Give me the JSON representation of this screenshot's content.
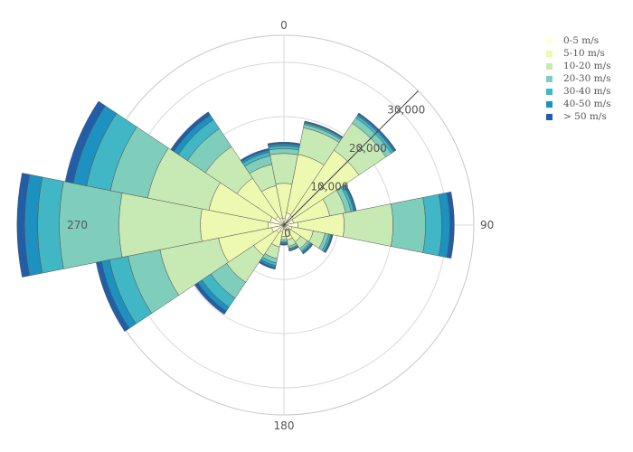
{
  "chart_data": {
    "type": "barpolar",
    "angular_axis": {
      "direction": "clockwise",
      "rotation_deg": 90,
      "tick_labels": [
        "0",
        "90",
        "180",
        "270"
      ]
    },
    "radial_axis": {
      "range": [
        0,
        35000
      ],
      "tick_labels": [
        "0",
        "10,000",
        "20,000",
        "30,000"
      ],
      "tick_values": [
        0,
        10000,
        20000,
        30000
      ],
      "angle_deg": 45
    },
    "directions_deg": [
      0,
      22.5,
      45,
      67.5,
      90,
      112.5,
      135,
      157.5,
      180,
      202.5,
      225,
      247.5,
      270,
      292.5,
      315,
      337.5
    ],
    "series": [
      {
        "name": "0-5 m/s",
        "color": "#ffffd9",
        "values": [
          1200,
          2300,
          2100,
          1800,
          2600,
          1500,
          1100,
          900,
          800,
          1300,
          1700,
          2300,
          2900,
          2600,
          1900,
          1400
        ]
      },
      {
        "name": "5-10 m/s",
        "color": "#edf8b1",
        "values": [
          6500,
          11000,
          14500,
          6800,
          8500,
          4000,
          2600,
          1900,
          1300,
          2800,
          5000,
          10000,
          12500,
          11500,
          8500,
          6000
        ]
      },
      {
        "name": "10-20 m/s",
        "color": "#c7e9b4",
        "values": [
          5500,
          5000,
          6000,
          3000,
          9000,
          2200,
          1500,
          1200,
          600,
          2200,
          6000,
          11000,
          15000,
          11500,
          7000,
          4000
        ]
      },
      {
        "name": "20-30 m/s",
        "color": "#7fcdbb",
        "values": [
          900,
          600,
          1200,
          1000,
          6000,
          700,
          500,
          400,
          400,
          800,
          3500,
          6000,
          11000,
          7000,
          4000,
          1600
        ]
      },
      {
        "name": "30-40 m/s",
        "color": "#41b6c4",
        "values": [
          500,
          300,
          500,
          500,
          3000,
          400,
          300,
          200,
          200,
          500,
          2000,
          3500,
          4000,
          4500,
          2000,
          700
        ]
      },
      {
        "name": "40-50 m/s",
        "color": "#1d91c0",
        "values": [
          400,
          200,
          300,
          300,
          1500,
          200,
          200,
          200,
          200,
          400,
          900,
          1500,
          2400,
          2500,
          1000,
          400
        ]
      },
      {
        "name": "> 50 m/s",
        "color": "#225ea8",
        "values": [
          300,
          150,
          250,
          200,
          800,
          200,
          200,
          100,
          200,
          300,
          700,
          1000,
          1400,
          1500,
          700,
          300
        ]
      }
    ]
  }
}
